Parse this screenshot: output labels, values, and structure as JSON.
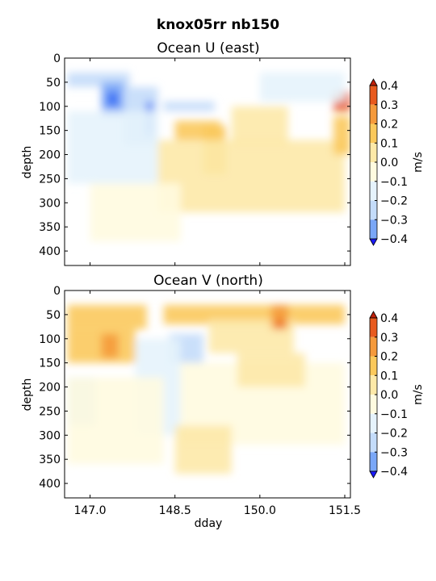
{
  "figure": {
    "suptitle": "knox05rr nb150"
  },
  "colorbar": {
    "label": "m/s",
    "levels": [
      -0.4,
      -0.3,
      -0.2,
      -0.1,
      0.0,
      0.1,
      0.2,
      0.3,
      0.4
    ],
    "tick_labels": [
      "0.4",
      "0.3",
      "0.2",
      "0.1",
      "0.0",
      "−0.1",
      "−0.2",
      "−0.3",
      "−0.4"
    ],
    "colors": [
      "#1a1aff",
      "#3b6ff5",
      "#7aa7f7",
      "#c4dcfa",
      "#e6f3fc",
      "#fffbe0",
      "#fde9a8",
      "#fbc95c",
      "#f59a3c",
      "#e85a1e",
      "#c0200a"
    ]
  },
  "chart_data": [
    {
      "type": "heatmap",
      "title": "Ocean U (east)",
      "xlabel": "",
      "ylabel": "depth",
      "xlim": [
        146.55,
        151.6
      ],
      "ylim": [
        430,
        0
      ],
      "yticks": [
        "0",
        "50",
        "100",
        "150",
        "200",
        "250",
        "300",
        "350",
        "400"
      ],
      "xticks": [
        147.0,
        148.5,
        150.0,
        151.5
      ],
      "xtick_labels": [],
      "units": "m/s",
      "features": [
        {
          "x": [
            146.6,
            147.7
          ],
          "y": [
            30,
            60
          ],
          "value": -0.25
        },
        {
          "x": [
            147.2,
            147.6
          ],
          "y": [
            50,
            120
          ],
          "value": -0.3
        },
        {
          "x": [
            147.3,
            147.5
          ],
          "y": [
            70,
            100
          ],
          "value": -0.4
        },
        {
          "x": [
            147.6,
            148.2
          ],
          "y": [
            60,
            180
          ],
          "value": -0.25
        },
        {
          "x": [
            148.0,
            148.1
          ],
          "y": [
            90,
            160
          ],
          "value": -0.4
        },
        {
          "x": [
            148.3,
            149.2
          ],
          "y": [
            90,
            110
          ],
          "value": -0.25
        },
        {
          "x": [
            148.5,
            149.3
          ],
          "y": [
            130,
            170
          ],
          "value": 0.15
        },
        {
          "x": [
            149.0,
            149.4
          ],
          "y": [
            140,
            240
          ],
          "value": 0.15
        },
        {
          "x": [
            146.6,
            148.2
          ],
          "y": [
            110,
            260
          ],
          "value": -0.1
        },
        {
          "x": [
            148.2,
            151.5
          ],
          "y": [
            170,
            320
          ],
          "value": 0.05
        },
        {
          "x": [
            149.5,
            150.5
          ],
          "y": [
            100,
            180
          ],
          "value": 0.05
        },
        {
          "x": [
            151.3,
            151.6
          ],
          "y": [
            70,
            110
          ],
          "value": 0.35
        },
        {
          "x": [
            151.3,
            151.6
          ],
          "y": [
            120,
            200
          ],
          "value": 0.15
        },
        {
          "x": [
            147.0,
            148.6
          ],
          "y": [
            260,
            380
          ],
          "value": -0.05
        },
        {
          "x": [
            150.0,
            151.5
          ],
          "y": [
            30,
            90
          ],
          "value": -0.1
        }
      ]
    },
    {
      "type": "heatmap",
      "title": "Ocean V (north)",
      "xlabel": "dday",
      "ylabel": "depth",
      "xlim": [
        146.55,
        151.6
      ],
      "ylim": [
        430,
        0
      ],
      "yticks": [
        "0",
        "50",
        "100",
        "150",
        "200",
        "250",
        "300",
        "350",
        "400"
      ],
      "xticks": [
        147.0,
        148.5,
        150.0,
        151.5
      ],
      "xtick_labels": [
        "147.0",
        "148.5",
        "150.0",
        "151.5"
      ],
      "units": "m/s",
      "features": [
        {
          "x": [
            146.6,
            148.0
          ],
          "y": [
            30,
            80
          ],
          "value": 0.2
        },
        {
          "x": [
            146.6,
            147.8
          ],
          "y": [
            80,
            150
          ],
          "value": 0.15
        },
        {
          "x": [
            147.2,
            147.5
          ],
          "y": [
            90,
            140
          ],
          "value": 0.25
        },
        {
          "x": [
            148.3,
            151.5
          ],
          "y": [
            30,
            70
          ],
          "value": 0.15
        },
        {
          "x": [
            149.1,
            150.6
          ],
          "y": [
            60,
            130
          ],
          "value": 0.1
        },
        {
          "x": [
            150.2,
            150.5
          ],
          "y": [
            30,
            80
          ],
          "value": 0.3
        },
        {
          "x": [
            150.3,
            150.4
          ],
          "y": [
            60,
            80
          ],
          "value": 0.4
        },
        {
          "x": [
            148.4,
            149.0
          ],
          "y": [
            90,
            150
          ],
          "value": -0.25
        },
        {
          "x": [
            147.8,
            148.6
          ],
          "y": [
            100,
            300
          ],
          "value": -0.1
        },
        {
          "x": [
            146.6,
            147.1
          ],
          "y": [
            180,
            280
          ],
          "value": -0.25
        },
        {
          "x": [
            146.6,
            148.3
          ],
          "y": [
            180,
            360
          ],
          "value": -0.05
        },
        {
          "x": [
            148.6,
            151.5
          ],
          "y": [
            150,
            320
          ],
          "value": -0.05
        },
        {
          "x": [
            149.6,
            150.8
          ],
          "y": [
            130,
            200
          ],
          "value": 0.05
        },
        {
          "x": [
            148.5,
            149.5
          ],
          "y": [
            280,
            380
          ],
          "value": 0.05
        }
      ]
    }
  ]
}
